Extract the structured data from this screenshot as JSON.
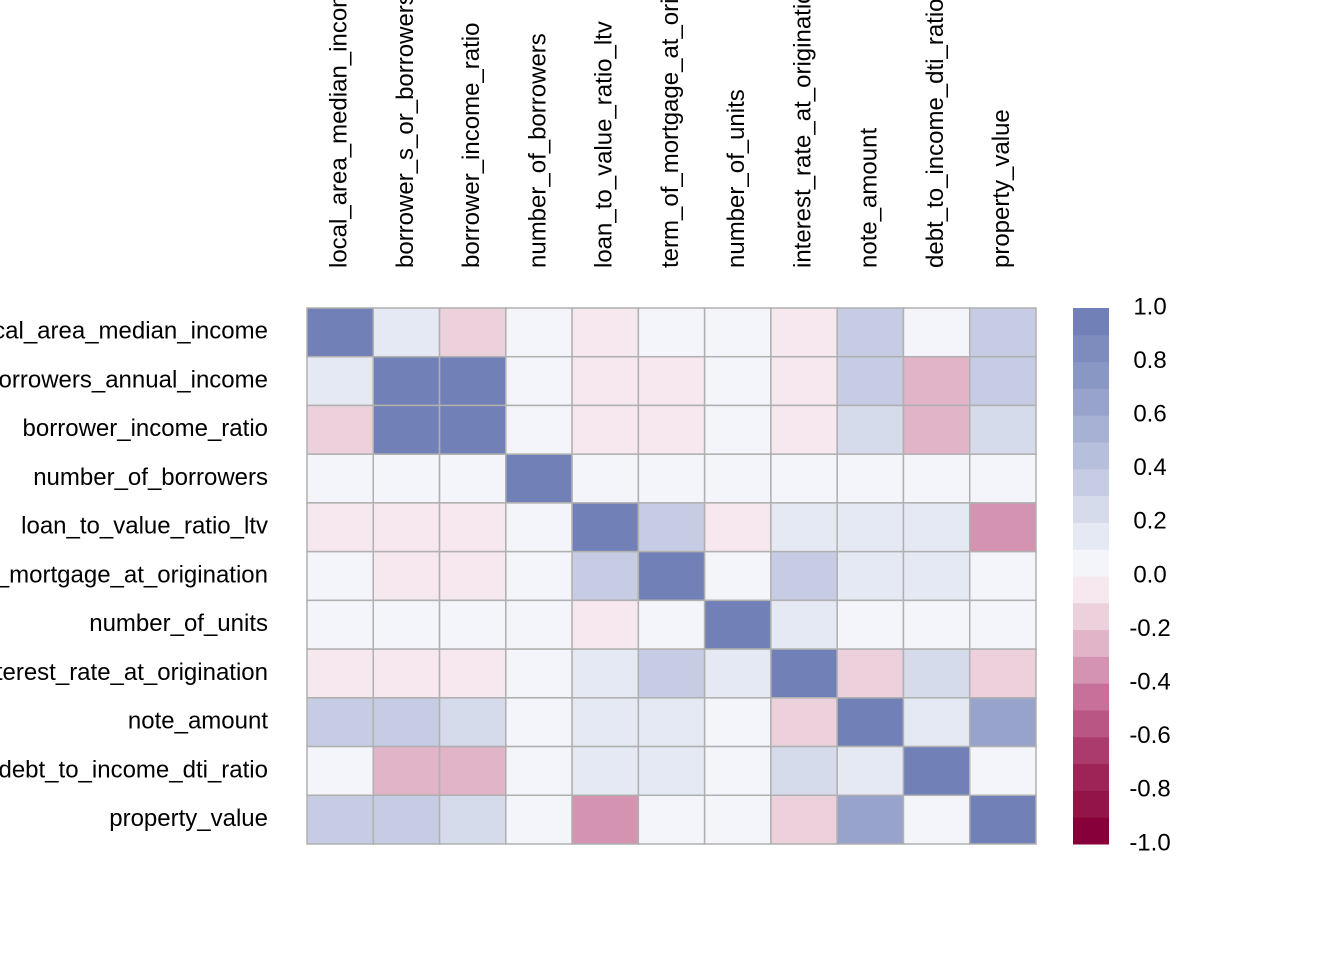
{
  "chart_data": {
    "type": "heatmap",
    "categories": [
      "local_area_median_income",
      "borrower_s_or_borrowers_annual_income",
      "borrower_income_ratio",
      "number_of_borrowers",
      "loan_to_value_ratio_ltv",
      "term_of_mortgage_at_origination",
      "number_of_units",
      "interest_rate_at_origination",
      "note_amount",
      "debt_to_income_dti_ratio",
      "property_value"
    ],
    "z": [
      [
        1,
        0.15,
        -0.2,
        0,
        -0.05,
        0,
        0,
        -0.05,
        0.35,
        0,
        0.3
      ],
      [
        0.15,
        1,
        0.95,
        0,
        -0.05,
        -0.05,
        0,
        -0.05,
        0.35,
        -0.25,
        0.3
      ],
      [
        -0.2,
        0.95,
        1,
        0,
        -0.05,
        -0.05,
        0,
        -0.05,
        0.25,
        -0.25,
        0.25
      ],
      [
        0,
        0,
        0,
        1,
        0,
        0,
        0,
        0,
        0,
        0,
        0
      ],
      [
        -0.05,
        -0.05,
        -0.05,
        0,
        1,
        0.3,
        -0.05,
        0.1,
        0.1,
        0.1,
        -0.35
      ],
      [
        0,
        -0.05,
        -0.05,
        0,
        0.3,
        1,
        0,
        0.3,
        0.1,
        0.1,
        0
      ],
      [
        0,
        0,
        0,
        0,
        -0.05,
        0,
        1,
        0.1,
        0,
        0,
        0
      ],
      [
        -0.05,
        -0.05,
        -0.05,
        0,
        0.1,
        0.3,
        0.1,
        1,
        -0.2,
        0.2,
        -0.2
      ],
      [
        0.35,
        0.35,
        0.25,
        0,
        0.1,
        0.1,
        0,
        -0.2,
        1,
        0.1,
        0.65
      ],
      [
        0,
        -0.25,
        -0.25,
        0,
        0.1,
        0.1,
        0,
        0.2,
        0.1,
        1,
        0
      ],
      [
        0.3,
        0.3,
        0.25,
        0,
        -0.35,
        0,
        0,
        -0.2,
        0.65,
        0,
        1
      ]
    ],
    "zlim": [
      -1,
      1
    ],
    "colors": [
      "#88003a",
      "#931447",
      "#9e2458",
      "#ab3a6d",
      "#b95683",
      "#c77099",
      "#d493b0",
      "#e1b4c7",
      "#ecd0dc",
      "#f6e8ee",
      "#f4f5fa",
      "#e5e9f3",
      "#d5dbeb",
      "#c5cce3",
      "#b6bfdb",
      "#a6b1d3",
      "#97a3cb",
      "#8997c4",
      "#7d8cbd",
      "#7181b8"
    ],
    "zticks": [
      {
        "value": 1,
        "label": "1.0"
      },
      {
        "value": 0.8,
        "label": "0.8"
      },
      {
        "value": 0.6,
        "label": "0.6"
      },
      {
        "value": 0.4,
        "label": "0.4"
      },
      {
        "value": 0.2,
        "label": "0.2"
      },
      {
        "value": 0,
        "label": "0.0"
      },
      {
        "value": -0.2,
        "label": "-0.2"
      },
      {
        "value": -0.4,
        "label": "-0.4"
      },
      {
        "value": -0.6,
        "label": "-0.6"
      },
      {
        "value": -0.8,
        "label": "-0.8"
      },
      {
        "value": -1,
        "label": "-1.0"
      }
    ]
  }
}
